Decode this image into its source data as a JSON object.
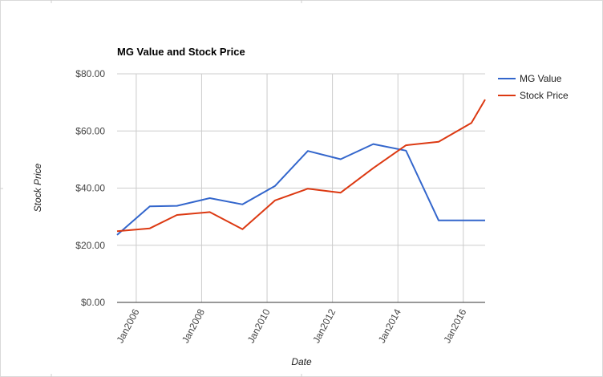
{
  "chart_data": {
    "type": "line",
    "title": "MG Value and Stock Price",
    "xlabel": "Date",
    "ylabel": "Stock Price",
    "x_range": [
      "2005-06-01",
      "2016-09-01"
    ],
    "ylim": [
      0,
      80
    ],
    "y_ticks": [
      {
        "value": 0,
        "label": "$0.00"
      },
      {
        "value": 20,
        "label": "$20.00"
      },
      {
        "value": 40,
        "label": "$40.00"
      },
      {
        "value": 60,
        "label": "$60.00"
      },
      {
        "value": 80,
        "label": "$80.00"
      }
    ],
    "x_ticks": [
      {
        "value": "2006-01-01",
        "label": "Jan2006"
      },
      {
        "value": "2008-01-01",
        "label": "Jan2008"
      },
      {
        "value": "2010-01-01",
        "label": "Jan2010"
      },
      {
        "value": "2012-01-01",
        "label": "Jan2012"
      },
      {
        "value": "2014-01-01",
        "label": "Jan2014"
      },
      {
        "value": "2016-01-01",
        "label": "Jan2016"
      }
    ],
    "grid": true,
    "legend_position": "right",
    "series": [
      {
        "name": "MG Value",
        "color": "#3366cc",
        "points": [
          {
            "x": "2005-06-01",
            "y": 23.6
          },
          {
            "x": "2006-06-01",
            "y": 33.6
          },
          {
            "x": "2007-04-01",
            "y": 33.8
          },
          {
            "x": "2008-04-01",
            "y": 36.5
          },
          {
            "x": "2009-04-01",
            "y": 34.3
          },
          {
            "x": "2010-04-01",
            "y": 40.8
          },
          {
            "x": "2011-04-01",
            "y": 53.0
          },
          {
            "x": "2012-04-01",
            "y": 50.1
          },
          {
            "x": "2013-04-01",
            "y": 55.4
          },
          {
            "x": "2014-04-01",
            "y": 53.1
          },
          {
            "x": "2015-04-01",
            "y": 28.7
          },
          {
            "x": "2016-04-01",
            "y": 28.7
          },
          {
            "x": "2016-09-01",
            "y": 28.7
          }
        ]
      },
      {
        "name": "Stock Price",
        "color": "#dc3912",
        "points": [
          {
            "x": "2005-06-01",
            "y": 24.9
          },
          {
            "x": "2006-06-01",
            "y": 25.9
          },
          {
            "x": "2007-04-01",
            "y": 30.6
          },
          {
            "x": "2008-04-01",
            "y": 31.6
          },
          {
            "x": "2009-04-01",
            "y": 25.6
          },
          {
            "x": "2010-04-01",
            "y": 35.7
          },
          {
            "x": "2011-04-01",
            "y": 39.8
          },
          {
            "x": "2012-04-01",
            "y": 38.4
          },
          {
            "x": "2013-04-01",
            "y": 47.0
          },
          {
            "x": "2014-04-01",
            "y": 55.0
          },
          {
            "x": "2015-04-01",
            "y": 56.2
          },
          {
            "x": "2016-04-01",
            "y": 62.8
          },
          {
            "x": "2016-09-01",
            "y": 71.0
          }
        ]
      }
    ]
  }
}
